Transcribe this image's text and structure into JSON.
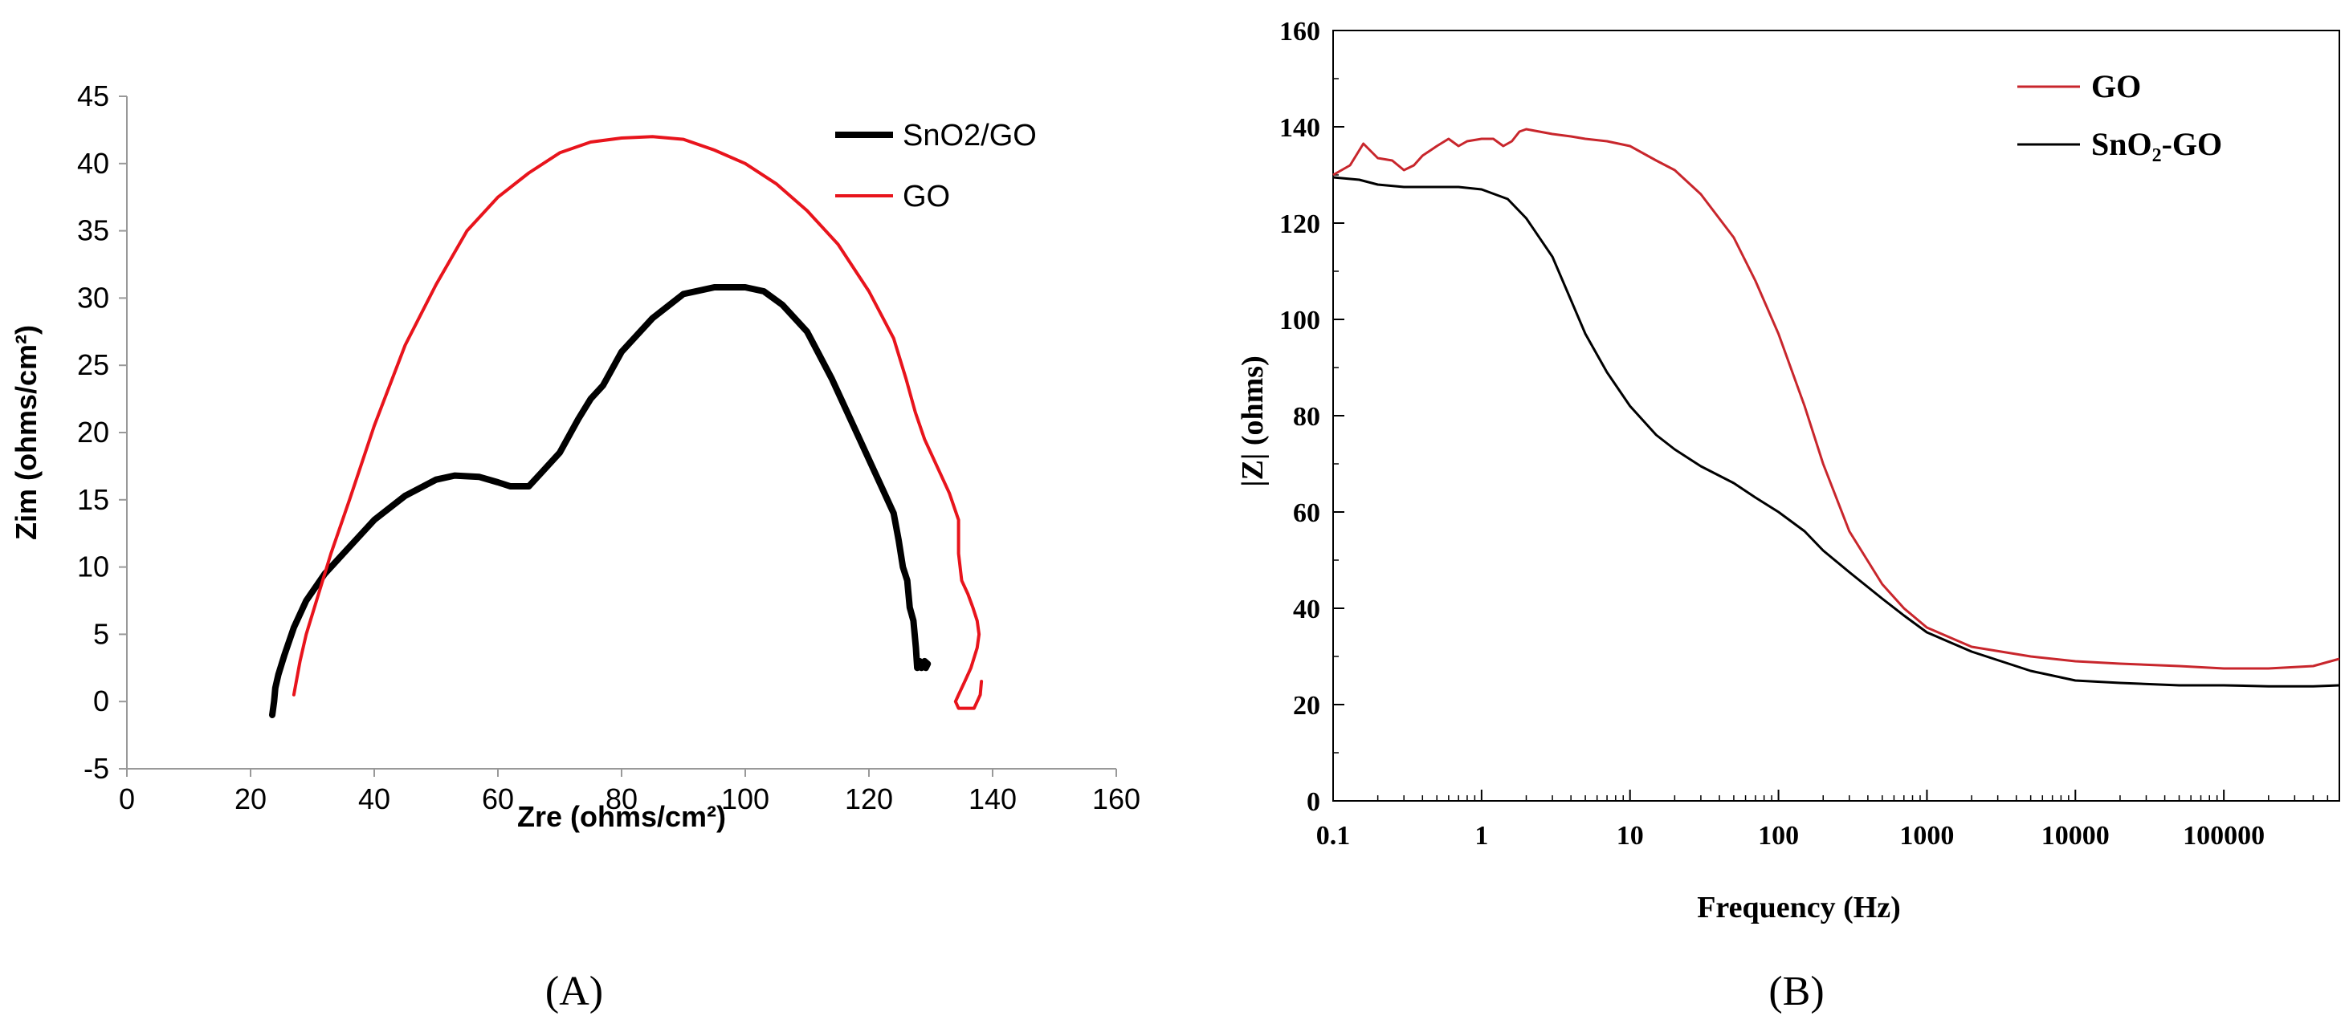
{
  "chart_data": [
    {
      "panel": "A",
      "type": "line",
      "title": "",
      "caption": "(A)",
      "xlabel": "Zre (ohms/cm²)",
      "ylabel": "Zim (ohms/cm²)",
      "xlim": [
        0,
        160
      ],
      "ylim": [
        -5,
        45
      ],
      "xticks": [
        0,
        20,
        40,
        60,
        80,
        100,
        120,
        140,
        160
      ],
      "yticks": [
        -5,
        0,
        5,
        10,
        15,
        20,
        25,
        30,
        35,
        40,
        45
      ],
      "grid": false,
      "legend": "top-right",
      "series": [
        {
          "name": "SnO2/GO",
          "color": "#000000",
          "x": [
            23.5,
            23.8,
            24.0,
            24.5,
            25.5,
            27,
            29,
            32,
            35,
            40,
            45,
            50,
            53,
            57,
            60,
            62,
            65,
            67,
            70,
            73,
            75,
            77,
            80,
            85,
            90,
            95,
            100,
            103,
            106,
            110,
            114,
            117,
            120,
            122,
            124,
            124.8,
            125.5,
            126.2,
            126.6,
            127.2,
            127.6,
            127.8,
            128.2,
            128.5,
            129.0,
            129.5,
            129.2
          ],
          "y": [
            -1,
            0,
            1,
            2,
            3.5,
            5.5,
            7.5,
            9.5,
            11,
            13.5,
            15.3,
            16.5,
            16.8,
            16.7,
            16.3,
            16.0,
            16.0,
            17,
            18.5,
            21,
            22.5,
            23.5,
            26,
            28.5,
            30.3,
            30.8,
            30.8,
            30.5,
            29.5,
            27.5,
            24,
            21,
            18,
            16,
            14,
            12,
            10,
            9,
            7,
            6,
            4,
            2.5,
            3,
            2.5,
            3,
            2.8,
            2.5
          ]
        },
        {
          "name": "GO",
          "color": "#e8141c",
          "x": [
            27,
            28,
            29,
            31,
            33,
            36,
            40,
            45,
            50,
            55,
            60,
            65,
            70,
            75,
            80,
            85,
            90,
            95,
            100,
            105,
            110,
            115,
            120,
            124,
            126,
            127.5,
            129,
            131,
            133,
            134.5,
            134.5,
            135,
            136,
            136.8,
            137.5,
            137.8,
            137.5,
            136.5,
            135.5,
            134.5,
            134,
            134.5,
            136,
            137,
            137.5,
            138.0,
            138.2
          ],
          "y": [
            0.5,
            3,
            5,
            8,
            11,
            15,
            20.5,
            26.5,
            31,
            35,
            37.5,
            39.3,
            40.8,
            41.6,
            41.9,
            42.0,
            41.8,
            41,
            40,
            38.5,
            36.5,
            34,
            30.5,
            27,
            24,
            21.5,
            19.5,
            17.5,
            15.5,
            13.5,
            11,
            9,
            8,
            7,
            6,
            5,
            4,
            2.5,
            1.5,
            0.5,
            0,
            -0.5,
            -0.5,
            -0.5,
            0,
            0.5,
            1.5
          ]
        }
      ]
    },
    {
      "panel": "B",
      "type": "line",
      "title": "",
      "caption": "(B)",
      "xlabel": "Frequency (Hz)",
      "ylabel": "|Z| (ohms)",
      "xscale": "log",
      "xlim": [
        0.1,
        600000
      ],
      "ylim": [
        0,
        160
      ],
      "xticks": [
        0.1,
        1,
        10,
        100,
        1000,
        10000,
        100000
      ],
      "xticklabels": [
        "0.1",
        "1",
        "10",
        "100",
        "1000",
        "10000",
        "100000"
      ],
      "yticks": [
        0,
        20,
        40,
        60,
        80,
        100,
        120,
        140,
        160
      ],
      "grid": false,
      "legend": "top-right",
      "series": [
        {
          "name": "GO",
          "color": "#c8262c",
          "x": [
            0.1,
            0.13,
            0.16,
            0.2,
            0.25,
            0.3,
            0.35,
            0.4,
            0.5,
            0.6,
            0.7,
            0.8,
            1.0,
            1.2,
            1.4,
            1.6,
            1.8,
            2.0,
            3,
            4,
            5,
            7,
            10,
            15,
            20,
            30,
            50,
            70,
            100,
            150,
            200,
            300,
            500,
            700,
            1000,
            2000,
            5000,
            10000,
            20000,
            50000,
            100000,
            200000,
            400000,
            600000
          ],
          "y": [
            130,
            132,
            136.5,
            133.5,
            133,
            131,
            132,
            134,
            136,
            137.5,
            136,
            137,
            137.5,
            137.5,
            136,
            137,
            139,
            139.5,
            138.5,
            138,
            137.5,
            137,
            136,
            133,
            131,
            126,
            117,
            108,
            97,
            82,
            70,
            56,
            45,
            40,
            36,
            32,
            30,
            29,
            28.5,
            28,
            27.5,
            27.5,
            28,
            29.5
          ]
        },
        {
          "name": "SnO₂-GO",
          "color": "#000000",
          "x": [
            0.1,
            0.15,
            0.2,
            0.3,
            0.5,
            0.7,
            1,
            1.5,
            2,
            3,
            4,
            5,
            7,
            10,
            15,
            20,
            30,
            50,
            70,
            100,
            150,
            200,
            300,
            500,
            700,
            1000,
            2000,
            5000,
            10000,
            20000,
            50000,
            100000,
            200000,
            400000,
            600000
          ],
          "y": [
            129.5,
            129,
            128,
            127.5,
            127.5,
            127.5,
            127,
            125,
            121,
            113,
            104,
            97,
            89,
            82,
            76,
            73,
            69.5,
            66,
            63,
            60,
            56,
            52,
            47.5,
            42,
            38.5,
            35,
            31,
            27,
            25,
            24.5,
            24,
            24,
            23.8,
            23.8,
            24
          ]
        }
      ]
    }
  ]
}
